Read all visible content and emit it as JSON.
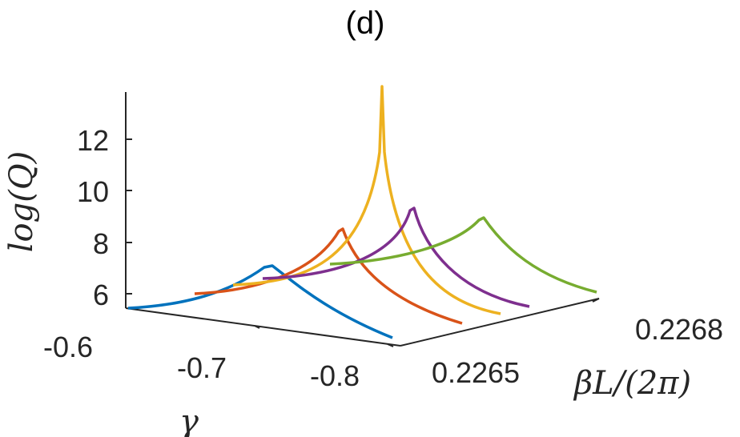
{
  "chart_data": {
    "type": "line",
    "title": "(d)",
    "xlabel": "γ",
    "ylabel": "log(Q)",
    "zlabel": "βL/(2π)",
    "projection": "3d",
    "x_ticks": [
      "-0.6",
      "-0.7",
      "-0.8"
    ],
    "y_ticks": [
      "6",
      "8",
      "10",
      "12"
    ],
    "z_ticks": [
      "0.2265",
      "0.2268"
    ],
    "grid": false,
    "legend": "none",
    "series": [
      {
        "color": "#0072BD",
        "peak_gamma": -0.7,
        "peak_logQ": 6.9,
        "min_logQ": 5.5
      },
      {
        "color": "#D95319",
        "peak_gamma": -0.7,
        "peak_logQ": 8.5,
        "min_logQ": 6.0
      },
      {
        "color": "#EDB120",
        "peak_gamma": -0.7,
        "peak_logQ": 13.8,
        "min_logQ": 6.2
      },
      {
        "color": "#7E2F8E",
        "peak_gamma": -0.7,
        "peak_logQ": 9.0,
        "min_logQ": 6.3
      },
      {
        "color": "#77AC30",
        "peak_gamma": -0.7,
        "peak_logQ": 8.8,
        "min_logQ": 6.7
      }
    ]
  }
}
